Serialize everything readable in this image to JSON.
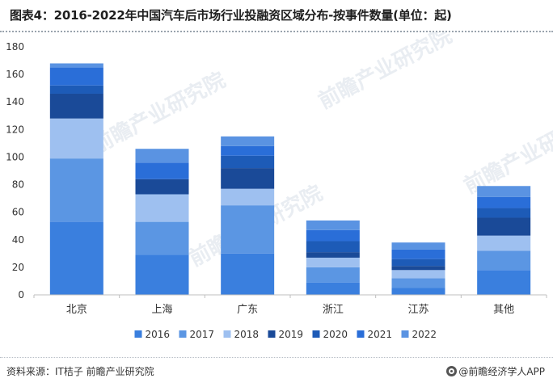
{
  "title": "图表4：2016-2022年中国汽车后市场行业投融资区域分布-按事件数量(单位：起)",
  "source": "资料来源：IT桔子 前瞻产业研究院",
  "brand": "@前瞻经济学人APP",
  "watermark": "前瞻产业研究院",
  "chart_data": {
    "type": "bar",
    "stacked": true,
    "title": "图表4：2016-2022年中国汽车后市场行业投融资区域分布-按事件数量(单位：起)",
    "xlabel": "",
    "ylabel": "",
    "categories": [
      "北京",
      "上海",
      "广东",
      "浙江",
      "江苏",
      "其他"
    ],
    "yticks": [
      0,
      20,
      40,
      60,
      80,
      100,
      120,
      140,
      160,
      180
    ],
    "ylim": [
      0,
      180
    ],
    "grid": false,
    "legend_position": "bottom",
    "series": [
      {
        "name": "2016",
        "color": "#3a7fde",
        "values": [
          53,
          29,
          30,
          9,
          5,
          18
        ]
      },
      {
        "name": "2017",
        "color": "#5b96e3",
        "values": [
          46,
          24,
          35,
          11,
          7,
          14
        ]
      },
      {
        "name": "2018",
        "color": "#9ec0f0",
        "values": [
          29,
          20,
          12,
          7,
          6,
          11
        ]
      },
      {
        "name": "2019",
        "color": "#1a4a98",
        "values": [
          18,
          11,
          15,
          4,
          3,
          13
        ]
      },
      {
        "name": "2020",
        "color": "#1d5bb7",
        "values": [
          6,
          0,
          9,
          8,
          5,
          7
        ]
      },
      {
        "name": "2021",
        "color": "#2a6ed8",
        "values": [
          13,
          12,
          7,
          8,
          7,
          8
        ]
      },
      {
        "name": "2022",
        "color": "#5a93e2",
        "values": [
          3,
          10,
          7,
          7,
          5,
          8
        ]
      }
    ]
  }
}
